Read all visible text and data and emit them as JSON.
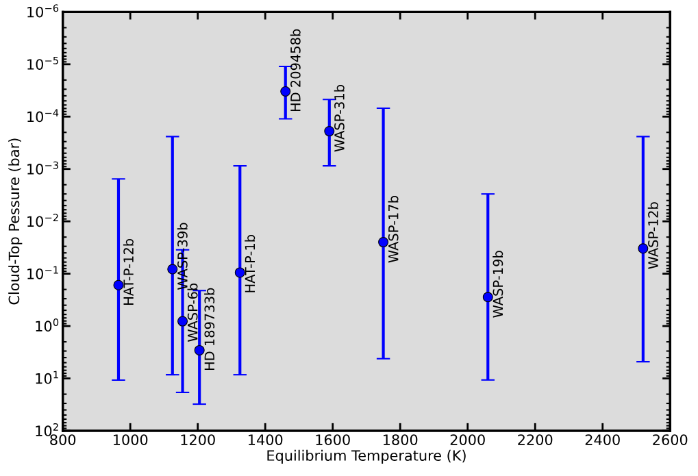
{
  "chart_data": {
    "type": "scatter",
    "xlabel": "Equilibrium Temperature (K)",
    "ylabel": "Cloud-Top Pessure (bar)",
    "x": [
      965,
      1125,
      1155,
      1205,
      1325,
      1460,
      1590,
      1750,
      2060,
      2520
    ],
    "series": [
      {
        "color": "#0000ff",
        "values": [
          0.165,
          0.082,
          0.81,
          2.9,
          0.095,
          3.3e-05,
          0.00019,
          0.025,
          0.28,
          0.033
        ],
        "errors": [
          [
            0.00155,
            10.8
          ],
          [
            0.00024,
            8.5
          ],
          [
            0.035,
            18.5
          ],
          [
            0.21,
            31
          ],
          [
            0.00087,
            8.5
          ],
          [
            1.1e-05,
            0.00011
          ],
          [
            4.7e-05,
            0.00087
          ],
          [
            6.9e-05,
            4.2
          ],
          [
            0.003,
            10.7
          ],
          [
            0.00024,
            4.8
          ]
        ]
      }
    ],
    "annotations": [
      {
        "text": "HAT-P-12b",
        "x": 965,
        "y": 0.165
      },
      {
        "text": "WASP-39b",
        "x": 1125,
        "y": 0.082
      },
      {
        "text": "WASP-6b",
        "x": 1155,
        "y": 0.81
      },
      {
        "text": "HD 189733b",
        "x": 1205,
        "y": 2.9
      },
      {
        "text": "HAT-P-1b",
        "x": 1325,
        "y": 0.095
      },
      {
        "text": "HD 209458b",
        "x": 1460,
        "y": 3.3e-05
      },
      {
        "text": "WASP-31b",
        "x": 1590,
        "y": 0.00019
      },
      {
        "text": "WASP-17b",
        "x": 1750,
        "y": 0.025
      },
      {
        "text": "WASP-19b",
        "x": 2060,
        "y": 0.28
      },
      {
        "text": "WASP-12b",
        "x": 2520,
        "y": 0.033
      }
    ],
    "log": "y",
    "marker": "circle",
    "grid": false,
    "xlim": [
      800,
      2600
    ],
    "xticks": [
      800,
      1000,
      1200,
      1400,
      1600,
      1800,
      2000,
      2200,
      2400,
      2600
    ],
    "ylim": [
      100,
      1e-06
    ],
    "yticks": [
      {
        "value": 1e-06,
        "label": "10$^{−6}$"
      },
      {
        "value": 1e-05,
        "label": "10$^{−5}$"
      },
      {
        "value": 0.0001,
        "label": "10$^{−4}$"
      },
      {
        "value": 0.001,
        "label": "10$^{−3}$"
      },
      {
        "value": 0.01,
        "label": "10$^{−2}$"
      },
      {
        "value": 0.1,
        "label": "10$^{−1}$"
      },
      {
        "value": 1,
        "label": "10$^{0}$"
      },
      {
        "value": 10,
        "label": "10$^{1}$"
      },
      {
        "value": 100,
        "label": "10$^{2}$"
      }
    ]
  }
}
